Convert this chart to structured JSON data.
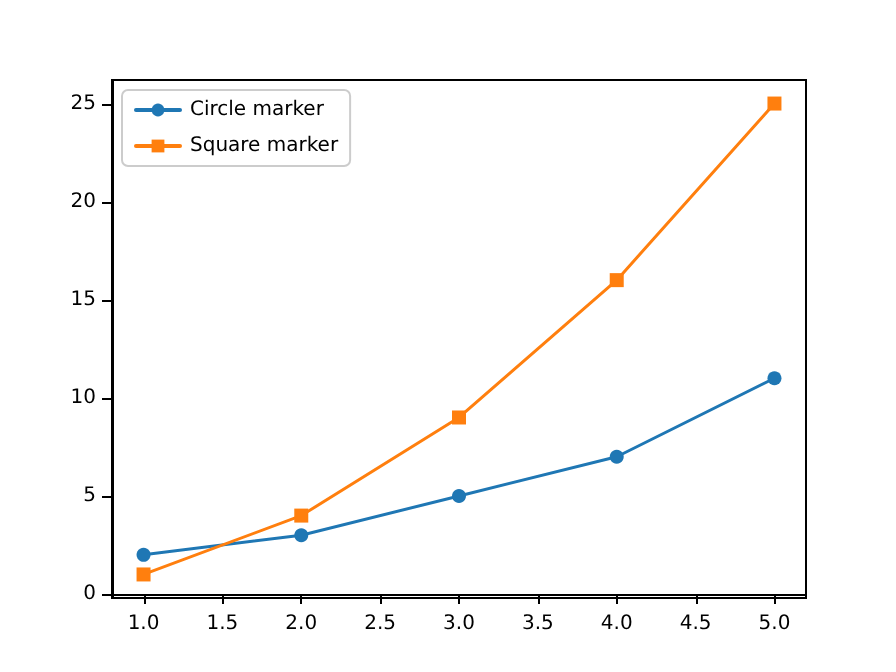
{
  "chart_data": {
    "type": "line",
    "x": [
      1,
      2,
      3,
      4,
      5
    ],
    "series": [
      {
        "name": "Circle marker",
        "color": "#1f77b4",
        "marker": "circle",
        "values": [
          2,
          3,
          5,
          7,
          11
        ]
      },
      {
        "name": "Square marker",
        "color": "#ff7f0e",
        "marker": "square",
        "values": [
          1,
          4,
          9,
          16,
          25
        ]
      }
    ],
    "xlim": [
      0.8,
      5.2
    ],
    "xticks": [
      {
        "value": 1,
        "label": "1.0"
      },
      {
        "value": 1.5,
        "label": "1.5"
      },
      {
        "value": 2,
        "label": "2.0"
      },
      {
        "value": 2.5,
        "label": "2.5"
      },
      {
        "value": 3,
        "label": "3.0"
      },
      {
        "value": 3.5,
        "label": "3.5"
      },
      {
        "value": 4,
        "label": "4.0"
      },
      {
        "value": 4.5,
        "label": "4.5"
      },
      {
        "value": 5,
        "label": "5.0"
      }
    ],
    "ylim": [
      -0.2,
      26.2
    ],
    "yticks": [
      0,
      5,
      10,
      15,
      20,
      25
    ],
    "grid": false,
    "legend": "top left",
    "line_style": "solid"
  }
}
